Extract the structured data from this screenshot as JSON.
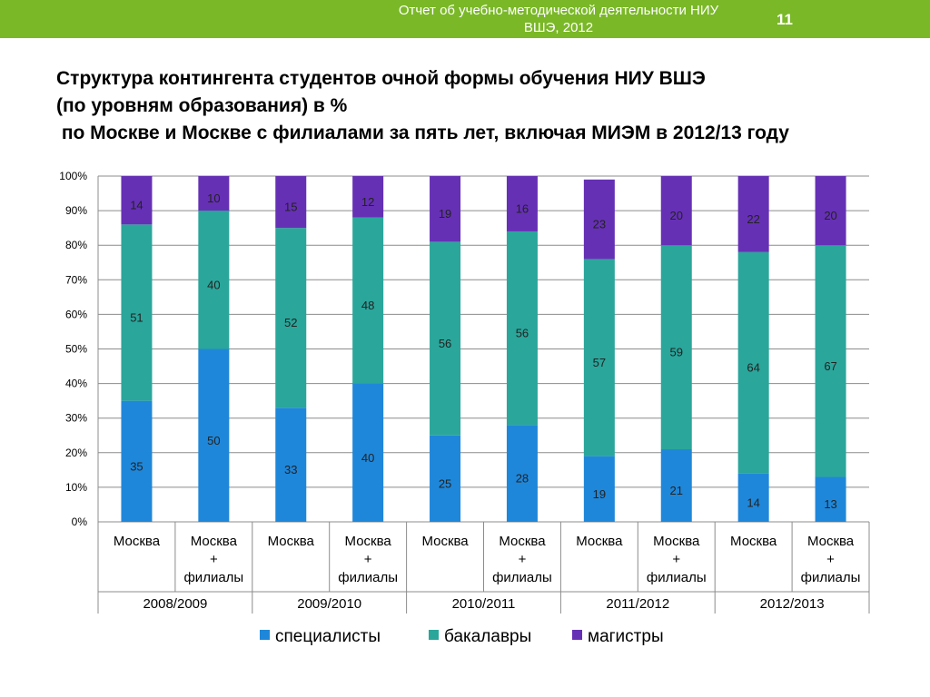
{
  "header": {
    "line1": "Отчет об учебно-методической деятельности НИУ",
    "line2": "ВШЭ, 2012",
    "page_number": "11"
  },
  "title_lines": [
    "Структура контингента студентов очной формы обучения НИУ ВШЭ",
    "(по уровням образования) в %",
    " по Москве и Москве с филиалами за пять лет, включая МИЭМ в 2012/13 году"
  ],
  "chart_data": {
    "type": "bar",
    "stacked": true,
    "percent": true,
    "title": "",
    "xlabel": "",
    "ylabel": "",
    "ylim": [
      0,
      100
    ],
    "y_ticks": [
      "0%",
      "10%",
      "20%",
      "30%",
      "40%",
      "50%",
      "60%",
      "70%",
      "80%",
      "90%",
      "100%"
    ],
    "grid": true,
    "legend_position": "bottom",
    "categories": [
      [
        "Москва"
      ],
      [
        "Москва",
        "+",
        "филиалы"
      ],
      [
        "Москва"
      ],
      [
        "Москва",
        "+",
        "филиалы"
      ],
      [
        "Москва"
      ],
      [
        "Москва",
        "+",
        "филиалы"
      ],
      [
        "Москва"
      ],
      [
        "Москва",
        "+",
        "филиалы"
      ],
      [
        "Москва"
      ],
      [
        "Москва",
        "+",
        "филиалы"
      ]
    ],
    "groups": [
      "2008/2009",
      "2009/2010",
      "2010/2011",
      "2011/2012",
      "2012/2013"
    ],
    "series": [
      {
        "name": "специалисты",
        "color": "#1f87d9",
        "values": [
          35,
          50,
          33,
          40,
          25,
          28,
          19,
          21,
          14,
          13
        ]
      },
      {
        "name": "бакалавры",
        "color": "#2aa69b",
        "values": [
          51,
          40,
          52,
          48,
          56,
          56,
          57,
          59,
          64,
          67
        ]
      },
      {
        "name": "магистры",
        "color": "#6630b5",
        "values": [
          14,
          10,
          15,
          12,
          19,
          16,
          23,
          20,
          22,
          20
        ]
      }
    ]
  }
}
